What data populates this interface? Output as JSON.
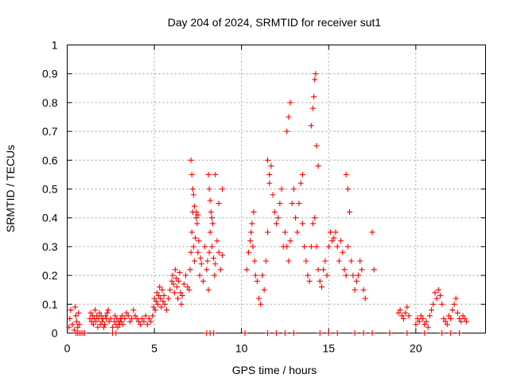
{
  "chart_data": {
    "type": "scatter",
    "title": "Day 204 of 2024, SRMTID for receiver sut1",
    "xlabel": "GPS time / hours",
    "ylabel": "SRMTID / TECUs",
    "xlim": [
      0,
      24
    ],
    "ylim": [
      0,
      1
    ],
    "xticks": [
      0,
      5,
      10,
      15,
      20
    ],
    "yticks": [
      0,
      0.1,
      0.2,
      0.3,
      0.4,
      0.5,
      0.6,
      0.7,
      0.8,
      0.9,
      1
    ],
    "xtick_labels": [
      "0",
      "5",
      "10",
      "15",
      "20"
    ],
    "ytick_labels": [
      "0",
      "0.1",
      "0.2",
      "0.3",
      "0.4",
      "0.5",
      "0.6",
      "0.7",
      "0.8",
      "0.9",
      "1"
    ],
    "grid": true,
    "marker": "plus",
    "series": [
      {
        "name": "SRMTID",
        "color": "#ff0000",
        "x": [
          0.1,
          0.15,
          0.2,
          0.3,
          0.4,
          0.45,
          0.5,
          0.55,
          0.6,
          0.65,
          0.7,
          0.8,
          0.9,
          1.0,
          1.3,
          1.35,
          1.4,
          1.45,
          1.5,
          1.55,
          1.6,
          1.65,
          1.7,
          1.75,
          1.8,
          1.85,
          1.9,
          1.95,
          2.0,
          2.05,
          2.1,
          2.15,
          2.2,
          2.25,
          2.3,
          2.35,
          2.4,
          2.5,
          2.6,
          2.7,
          2.75,
          2.8,
          2.85,
          2.9,
          2.95,
          3.0,
          3.05,
          3.1,
          3.15,
          3.2,
          3.3,
          3.4,
          3.5,
          3.6,
          3.7,
          3.8,
          3.9,
          4.0,
          4.1,
          4.2,
          4.3,
          4.4,
          4.5,
          4.6,
          4.7,
          4.8,
          4.9,
          4.95,
          5.0,
          5.05,
          5.1,
          5.15,
          5.2,
          5.25,
          5.3,
          5.35,
          5.4,
          5.45,
          5.5,
          5.55,
          5.6,
          5.7,
          5.8,
          5.9,
          6.0,
          6.05,
          6.1,
          6.15,
          6.2,
          6.25,
          6.3,
          6.35,
          6.4,
          6.45,
          6.5,
          6.55,
          6.6,
          6.7,
          6.8,
          6.9,
          7.0,
          7.05,
          7.1,
          7.15,
          7.2,
          7.25,
          7.3,
          7.35,
          7.4,
          7.45,
          7.5,
          7.55,
          7.6,
          7.65,
          7.7,
          7.8,
          7.9,
          8.0,
          8.05,
          8.1,
          8.15,
          8.2,
          8.25,
          8.3,
          8.35,
          8.4,
          8.45,
          8.5,
          8.6,
          8.7,
          8.8,
          8.9,
          7.1,
          7.15,
          7.2,
          7.25,
          7.3,
          7.4,
          7.5,
          8.1,
          8.15,
          8.2,
          8.3,
          8.5,
          8.7,
          8.9,
          10.3,
          10.4,
          10.5,
          10.55,
          10.6,
          10.65,
          10.7,
          10.75,
          10.8,
          10.9,
          11.0,
          11.1,
          11.2,
          11.3,
          11.4,
          11.5,
          11.6,
          11.7,
          11.8,
          11.9,
          12.0,
          12.1,
          12.2,
          12.3,
          12.4,
          12.5,
          12.6,
          12.7,
          12.8,
          12.9,
          13.0,
          13.1,
          13.2,
          13.3,
          13.4,
          13.5,
          13.6,
          13.7,
          13.8,
          13.9,
          14.0,
          14.1,
          14.2,
          14.3,
          14.4,
          14.5,
          14.6,
          14.7,
          14.8,
          14.9,
          15.0,
          15.1,
          15.2,
          15.3,
          15.4,
          15.5,
          15.6,
          15.7,
          15.8,
          15.9,
          16.0,
          16.1,
          16.2,
          16.3,
          16.4,
          16.5,
          16.6,
          16.7,
          16.8,
          16.9,
          17.0,
          17.1,
          17.5,
          17.6,
          11.5,
          11.6,
          12.6,
          12.7,
          12.8,
          13.5,
          14.0,
          14.1,
          14.15,
          14.2,
          14.25,
          14.3,
          14.4,
          16.0,
          16.1,
          19.0,
          19.1,
          19.2,
          19.3,
          19.4,
          19.5,
          19.6,
          20.0,
          20.1,
          20.2,
          20.3,
          20.4,
          20.5,
          20.6,
          20.7,
          20.8,
          20.9,
          21.0,
          21.1,
          21.2,
          21.3,
          21.4,
          21.5,
          21.6,
          21.7,
          21.8,
          21.9,
          22.0,
          22.1,
          22.2,
          22.3,
          22.4,
          22.5,
          22.6,
          22.7,
          22.8,
          22.9,
          0.5,
          0.6,
          0.7,
          2.6,
          2.8,
          8.0,
          8.2,
          8.4,
          10.2,
          11.5,
          12.0,
          12.5,
          13.0,
          14.5,
          15.0,
          15.5,
          16.5,
          17.0,
          17.5,
          18.5,
          19.5,
          20.5,
          21.5,
          22.0,
          22.5
        ],
        "y": [
          0.02,
          0.05,
          0.08,
          0.03,
          0.01,
          0.09,
          0.06,
          0.04,
          0.02,
          0.07,
          0.03,
          0.0,
          0.0,
          0.0,
          0.05,
          0.07,
          0.04,
          0.06,
          0.03,
          0.05,
          0.08,
          0.04,
          0.06,
          0.02,
          0.05,
          0.07,
          0.03,
          0.06,
          0.04,
          0.05,
          0.02,
          0.03,
          0.06,
          0.05,
          0.07,
          0.08,
          0.04,
          0.05,
          0.02,
          0.04,
          0.06,
          0.03,
          0.05,
          0.02,
          0.04,
          0.03,
          0.05,
          0.04,
          0.06,
          0.03,
          0.05,
          0.07,
          0.06,
          0.04,
          0.05,
          0.08,
          0.06,
          0.05,
          0.04,
          0.03,
          0.05,
          0.04,
          0.06,
          0.03,
          0.05,
          0.04,
          0.06,
          0.09,
          0.12,
          0.08,
          0.11,
          0.14,
          0.1,
          0.13,
          0.16,
          0.12,
          0.09,
          0.15,
          0.11,
          0.13,
          0.1,
          0.08,
          0.12,
          0.15,
          0.18,
          0.2,
          0.17,
          0.14,
          0.22,
          0.19,
          0.16,
          0.12,
          0.18,
          0.21,
          0.14,
          0.1,
          0.13,
          0.17,
          0.2,
          0.16,
          0.15,
          0.22,
          0.28,
          0.35,
          0.42,
          0.3,
          0.25,
          0.33,
          0.4,
          0.38,
          0.28,
          0.32,
          0.2,
          0.26,
          0.24,
          0.18,
          0.3,
          0.22,
          0.25,
          0.15,
          0.28,
          0.35,
          0.42,
          0.3,
          0.38,
          0.26,
          0.2,
          0.24,
          0.32,
          0.28,
          0.22,
          0.27,
          0.6,
          0.55,
          0.5,
          0.48,
          0.44,
          0.42,
          0.41,
          0.55,
          0.5,
          0.46,
          0.4,
          0.55,
          0.45,
          0.5,
          0.22,
          0.28,
          0.32,
          0.35,
          0.38,
          0.3,
          0.42,
          0.25,
          0.2,
          0.18,
          0.12,
          0.1,
          0.2,
          0.15,
          0.25,
          0.35,
          0.52,
          0.58,
          0.48,
          0.42,
          0.38,
          0.4,
          0.45,
          0.5,
          0.3,
          0.35,
          0.3,
          0.25,
          0.32,
          0.45,
          0.5,
          0.4,
          0.35,
          0.45,
          0.52,
          0.38,
          0.3,
          0.25,
          0.2,
          0.18,
          0.3,
          0.38,
          0.4,
          0.3,
          0.22,
          0.18,
          0.16,
          0.22,
          0.25,
          0.2,
          0.3,
          0.35,
          0.32,
          0.33,
          0.35,
          0.3,
          0.25,
          0.32,
          0.28,
          0.22,
          0.2,
          0.3,
          0.42,
          0.25,
          0.2,
          0.15,
          0.18,
          0.2,
          0.25,
          0.22,
          0.15,
          0.12,
          0.35,
          0.22,
          0.6,
          0.55,
          0.7,
          0.75,
          0.8,
          0.55,
          0.72,
          0.78,
          0.82,
          0.88,
          0.9,
          0.65,
          0.58,
          0.55,
          0.5,
          0.07,
          0.08,
          0.06,
          0.05,
          0.07,
          0.09,
          0.06,
          0.03,
          0.05,
          0.04,
          0.06,
          0.05,
          0.03,
          0.04,
          0.02,
          0.06,
          0.08,
          0.1,
          0.14,
          0.12,
          0.15,
          0.13,
          0.1,
          0.05,
          0.04,
          0.03,
          0.06,
          0.05,
          0.08,
          0.1,
          0.12,
          0.07,
          0.05,
          0.04,
          0.06,
          0.05,
          0.04,
          0.0,
          0.0,
          0.0,
          0.0,
          0.0,
          0.0,
          0.0,
          0.0,
          0.0,
          0.0,
          0.0,
          0.0,
          0.0,
          0.0,
          0.0,
          0.0,
          0.0,
          0.0,
          0.0,
          0.0,
          0.0,
          0.0,
          0.0,
          0.0,
          0.0
        ]
      }
    ]
  }
}
